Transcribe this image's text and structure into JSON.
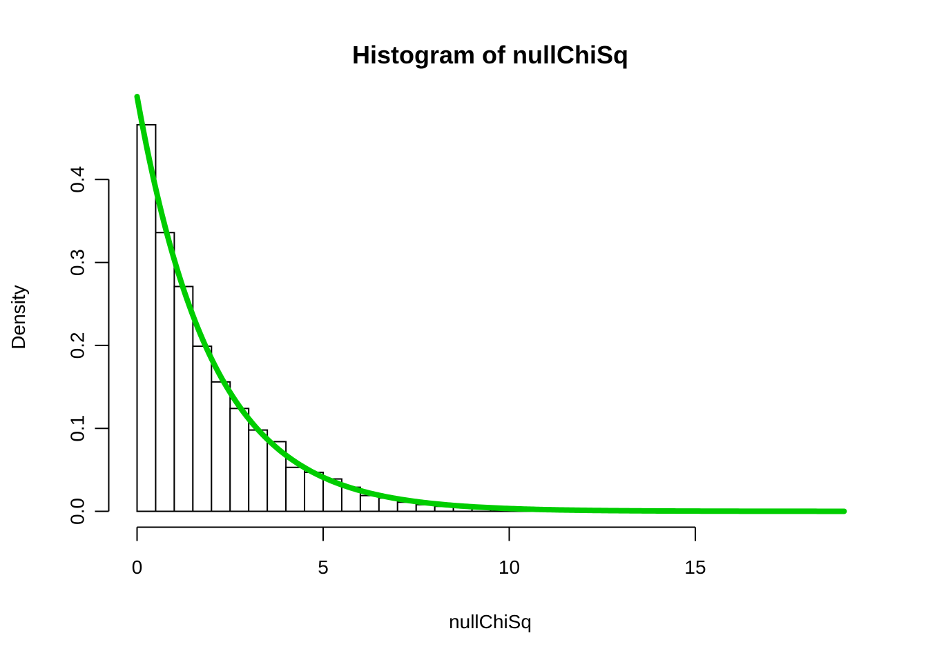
{
  "chart_data": {
    "type": "bar",
    "title": "Histogram of nullChiSq",
    "xlabel": "nullChiSq",
    "ylabel": "Density",
    "xlim": [
      0,
      19
    ],
    "ylim": [
      0,
      0.5
    ],
    "x_ticks": [
      "0",
      "5",
      "10",
      "15"
    ],
    "y_ticks": [
      "0.0",
      "0.1",
      "0.2",
      "0.3",
      "0.4"
    ],
    "grid": false,
    "bin_width": 0.5,
    "bin_edges_start": 0,
    "bins": [
      {
        "x0": 0.0,
        "x1": 0.5,
        "density": 0.466
      },
      {
        "x0": 0.5,
        "x1": 1.0,
        "density": 0.336
      },
      {
        "x0": 1.0,
        "x1": 1.5,
        "density": 0.271
      },
      {
        "x0": 1.5,
        "x1": 2.0,
        "density": 0.199
      },
      {
        "x0": 2.0,
        "x1": 2.5,
        "density": 0.156
      },
      {
        "x0": 2.5,
        "x1": 3.0,
        "density": 0.124
      },
      {
        "x0": 3.0,
        "x1": 3.5,
        "density": 0.098
      },
      {
        "x0": 3.5,
        "x1": 4.0,
        "density": 0.084
      },
      {
        "x0": 4.0,
        "x1": 4.5,
        "density": 0.053
      },
      {
        "x0": 4.5,
        "x1": 5.0,
        "density": 0.047
      },
      {
        "x0": 5.0,
        "x1": 5.5,
        "density": 0.039
      },
      {
        "x0": 5.5,
        "x1": 6.0,
        "density": 0.029
      },
      {
        "x0": 6.0,
        "x1": 6.5,
        "density": 0.019
      },
      {
        "x0": 6.5,
        "x1": 7.0,
        "density": 0.016
      },
      {
        "x0": 7.0,
        "x1": 7.5,
        "density": 0.011
      },
      {
        "x0": 7.5,
        "x1": 8.0,
        "density": 0.008
      },
      {
        "x0": 8.0,
        "x1": 8.5,
        "density": 0.006
      },
      {
        "x0": 8.5,
        "x1": 9.0,
        "density": 0.005
      },
      {
        "x0": 9.0,
        "x1": 9.5,
        "density": 0.003
      },
      {
        "x0": 9.5,
        "x1": 10.0,
        "density": 0.002
      },
      {
        "x0": 10.0,
        "x1": 10.5,
        "density": 0.001
      },
      {
        "x0": 10.5,
        "x1": 11.0,
        "density": 0.001
      }
    ],
    "overlay_curve": {
      "function": "dchisq(x, df=2)",
      "x_range": [
        0,
        19
      ],
      "color": "#00CD00"
    },
    "colors": {
      "bar_fill": "#ffffff",
      "bar_stroke": "#000000",
      "curve": "#00CD00"
    }
  }
}
